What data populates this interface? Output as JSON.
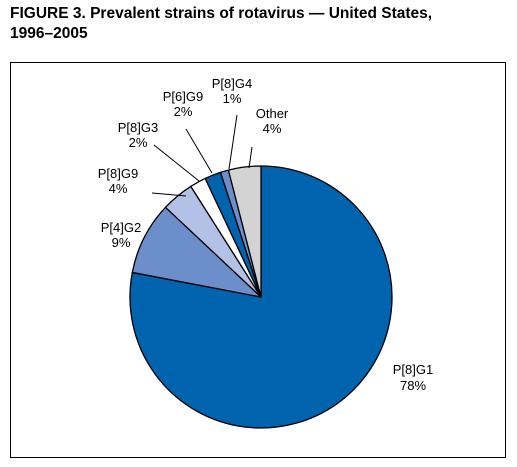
{
  "title_line1": "FIGURE 3. Prevalent strains of rotavirus — United States,",
  "title_line2": "1996–2005",
  "chart_data": {
    "type": "pie",
    "title": "FIGURE 3. Prevalent strains of rotavirus — United States, 1996–2005",
    "slices": [
      {
        "name": "P[8]G1",
        "value": 78,
        "label": "78%",
        "color": "#0063ae"
      },
      {
        "name": "P[4]G2",
        "value": 9,
        "label": "9%",
        "color": "#6c8fcb"
      },
      {
        "name": "P[8]G9",
        "value": 4,
        "label": "4%",
        "color": "#b3c1e6"
      },
      {
        "name": "P[8]G3",
        "value": 2,
        "label": "2%",
        "color": "#ffffff"
      },
      {
        "name": "P[6]G9",
        "value": 2,
        "label": "2%",
        "color": "#0063ae"
      },
      {
        "name": "P[8]G4",
        "value": 1,
        "label": "1%",
        "color": "#6c8fcb"
      },
      {
        "name": "Other",
        "value": 4,
        "label": "4%",
        "color": "#d3d3d3"
      }
    ]
  }
}
